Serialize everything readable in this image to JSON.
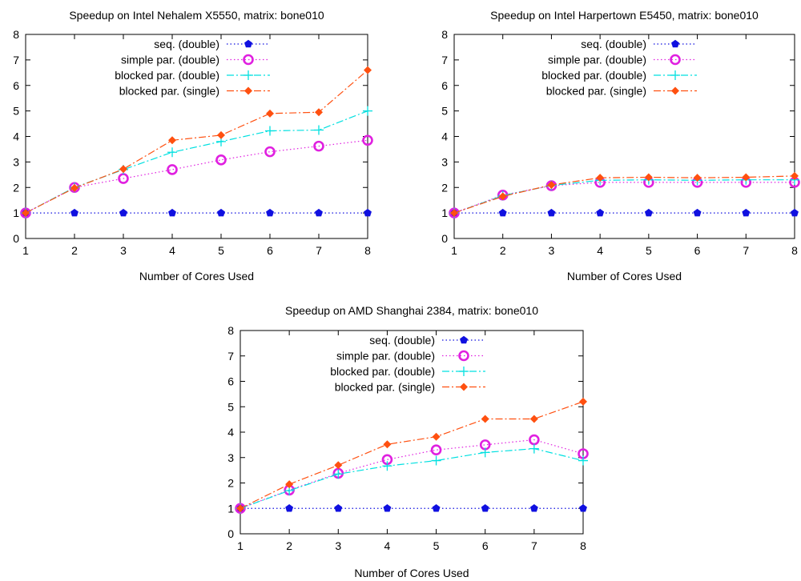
{
  "chart_data": [
    {
      "type": "line",
      "title": "Speedup on Intel Nehalem X5550, matrix: bone010",
      "xlabel": "Number of Cores Used",
      "ylabel": "",
      "xlim": [
        1,
        8
      ],
      "ylim": [
        0,
        8
      ],
      "x": [
        1,
        2,
        3,
        4,
        5,
        6,
        7,
        8
      ],
      "grid": false,
      "legend": "top",
      "series": [
        {
          "name": "seq. (double)",
          "color": "#1010e0",
          "style": "dotted",
          "marker": "pentagon",
          "values": [
            1,
            1,
            1,
            1,
            1,
            1,
            1,
            1
          ]
        },
        {
          "name": "simple par. (double)",
          "color": "#e020e0",
          "style": "dotted",
          "marker": "circle",
          "values": [
            1,
            2.0,
            2.35,
            2.7,
            3.08,
            3.4,
            3.62,
            3.85
          ]
        },
        {
          "name": "blocked par. (double)",
          "color": "#00e0e0",
          "style": "dashdot",
          "marker": "plus",
          "values": [
            1,
            2.0,
            2.7,
            3.38,
            3.8,
            4.22,
            4.25,
            5.0
          ]
        },
        {
          "name": "blocked par. (single)",
          "color": "#ff5010",
          "style": "dashdot",
          "marker": "diamond",
          "values": [
            1,
            1.98,
            2.72,
            3.85,
            4.05,
            4.9,
            4.95,
            6.6
          ]
        }
      ]
    },
    {
      "type": "line",
      "title": "Speedup on Intel Harpertown E5450, matrix: bone010",
      "xlabel": "Number of Cores Used",
      "ylabel": "",
      "xlim": [
        1,
        8
      ],
      "ylim": [
        0,
        8
      ],
      "x": [
        1,
        2,
        3,
        4,
        5,
        6,
        7,
        8
      ],
      "grid": false,
      "legend": "top",
      "series": [
        {
          "name": "seq. (double)",
          "color": "#1010e0",
          "style": "dotted",
          "marker": "pentagon",
          "values": [
            1,
            1,
            1,
            1,
            1,
            1,
            1,
            1
          ]
        },
        {
          "name": "simple par. (double)",
          "color": "#e020e0",
          "style": "dotted",
          "marker": "circle",
          "values": [
            1,
            1.7,
            2.07,
            2.2,
            2.2,
            2.2,
            2.2,
            2.2
          ]
        },
        {
          "name": "blocked par. (double)",
          "color": "#00e0e0",
          "style": "dashdot",
          "marker": "plus",
          "values": [
            1,
            1.68,
            2.08,
            2.28,
            2.3,
            2.28,
            2.3,
            2.3
          ]
        },
        {
          "name": "blocked par. (single)",
          "color": "#ff5010",
          "style": "dashdot",
          "marker": "diamond",
          "values": [
            1,
            1.65,
            2.1,
            2.38,
            2.4,
            2.38,
            2.4,
            2.45
          ]
        }
      ]
    },
    {
      "type": "line",
      "title": "Speedup on AMD Shanghai 2384, matrix: bone010",
      "xlabel": "Number of Cores Used",
      "ylabel": "",
      "xlim": [
        1,
        8
      ],
      "ylim": [
        0,
        8
      ],
      "x": [
        1,
        2,
        3,
        4,
        5,
        6,
        7,
        8
      ],
      "grid": false,
      "legend": "top",
      "series": [
        {
          "name": "seq. (double)",
          "color": "#1010e0",
          "style": "dotted",
          "marker": "pentagon",
          "values": [
            1,
            1,
            1,
            1,
            1,
            1,
            1,
            1
          ]
        },
        {
          "name": "simple par. (double)",
          "color": "#e020e0",
          "style": "dotted",
          "marker": "circle",
          "values": [
            1,
            1.72,
            2.38,
            2.92,
            3.3,
            3.5,
            3.7,
            3.15
          ]
        },
        {
          "name": "blocked par. (double)",
          "color": "#00e0e0",
          "style": "dashdot",
          "marker": "plus",
          "values": [
            1,
            1.7,
            2.35,
            2.67,
            2.88,
            3.2,
            3.35,
            2.88
          ]
        },
        {
          "name": "blocked par. (single)",
          "color": "#ff5010",
          "style": "dashdot",
          "marker": "diamond",
          "values": [
            1,
            1.95,
            2.7,
            3.52,
            3.82,
            4.52,
            4.52,
            5.2
          ]
        }
      ]
    }
  ]
}
